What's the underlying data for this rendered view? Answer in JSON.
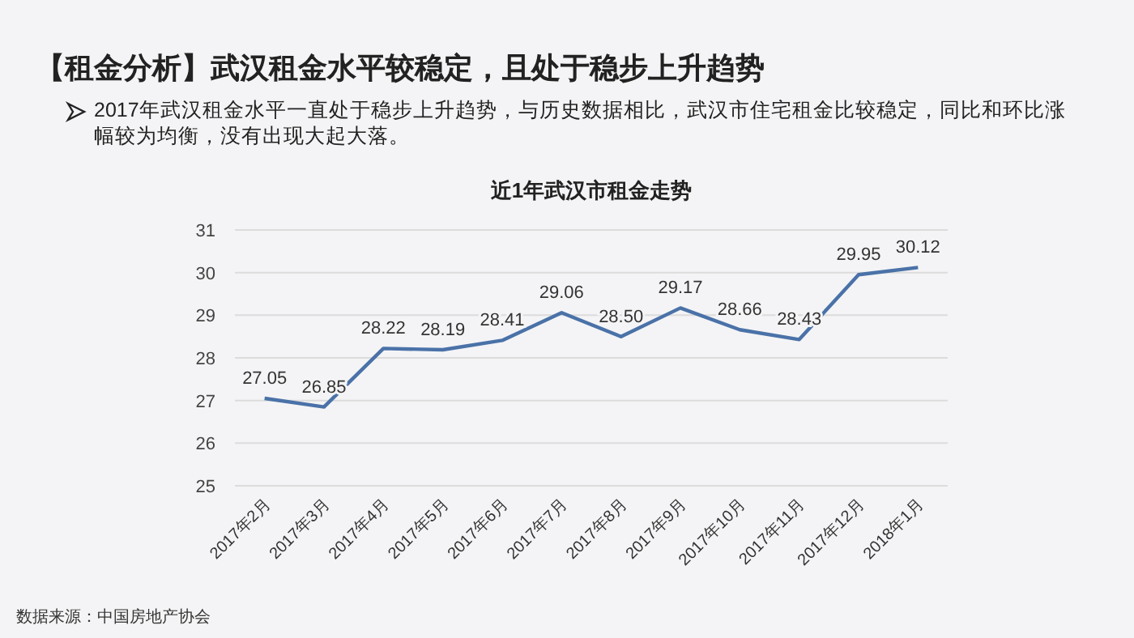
{
  "chart_data": {
    "type": "line",
    "title": "【租金分析】武汉租金水平较稳定，且处于稳步上升趋势",
    "subtitle": "2017年武汉租金水平一直处于稳步上升趋势，与历史数据相比，武汉市住宅租金比较稳定，同比和环比涨幅较为均衡，没有出现大起大落。",
    "xlabel": "近1年武汉市租金走势",
    "categories": [
      "2017年2月",
      "2017年3月",
      "2017年4月",
      "2017年5月",
      "2017年6月",
      "2017年7月",
      "2017年8月",
      "2017年9月",
      "2017年10月",
      "2017年11月",
      "2017年12月",
      "2018年1月"
    ],
    "series": [
      {
        "color": "#4a72a8",
        "values": [
          27.05,
          26.85,
          28.22,
          28.19,
          28.41,
          29.06,
          28.5,
          29.17,
          28.66,
          28.43,
          29.95,
          30.12
        ],
        "value_labels": [
          "27.05",
          "26.85",
          "28.22",
          "28.19",
          "28.41",
          "29.06",
          "28.50",
          "29.17",
          "28.66",
          "28.43",
          "29.95",
          "30.12"
        ]
      }
    ],
    "ylim": [
      25,
      31
    ],
    "yticks": [
      25,
      26,
      27,
      28,
      29,
      30,
      31
    ],
    "grid": "y",
    "marker": "none",
    "line_style": "solid",
    "annotations": [
      "数据来源：中国房地产协会"
    ]
  }
}
